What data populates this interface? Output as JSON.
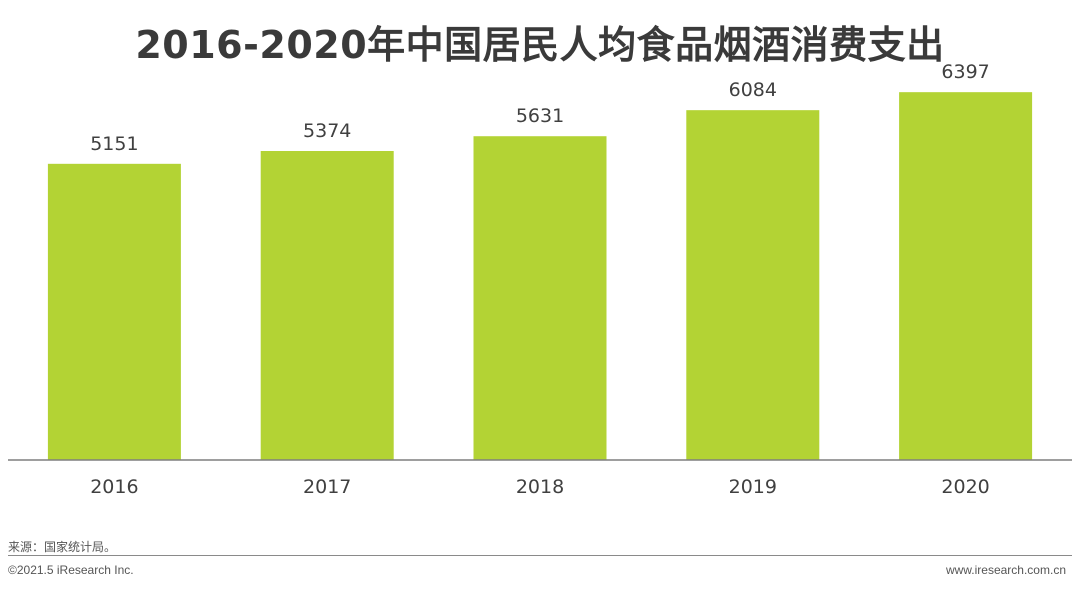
{
  "header": {
    "title": "2016-2020年中国居民人均食品烟酒消费支出"
  },
  "chart_data": {
    "type": "bar",
    "title": "2016-2020年中国居民人均食品烟酒消费支出",
    "categories": [
      "2016",
      "2017",
      "2018",
      "2019",
      "2020"
    ],
    "values": [
      5151,
      5374,
      5631,
      6084,
      6397
    ],
    "data_labels": [
      "5151",
      "5374",
      "5631",
      "6084",
      "6397"
    ],
    "ylim": [
      0,
      8000
    ],
    "grid": false,
    "legend": "none",
    "bar_color": "#b3d334",
    "axis_color": "#7f7f7f"
  },
  "footer": {
    "source": "来源：国家统计局。",
    "copyright": "©2021.5 iResearch Inc.",
    "website": "www.iresearch.com.cn"
  }
}
